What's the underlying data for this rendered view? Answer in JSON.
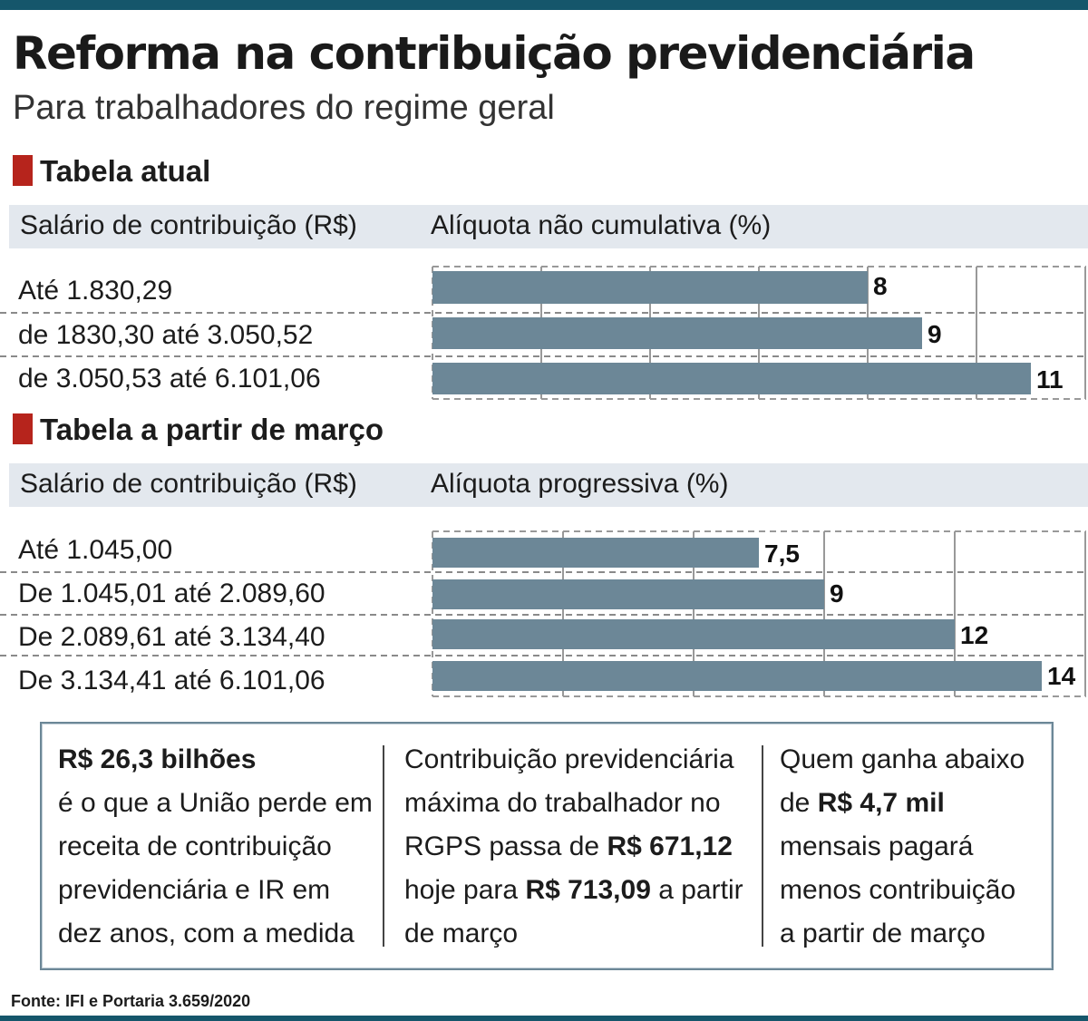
{
  "title": "Reforma na contribuição previdenciária",
  "subtitle": "Para trabalhadores do regime geral",
  "colors": {
    "bar": "#6c8797",
    "accent": "#b6241c",
    "rule": "#15566b",
    "header_bg": "#e3e8ee"
  },
  "chart_data": [
    {
      "type": "bar",
      "orientation": "horizontal",
      "section_title": "Tabela atual",
      "col_header_left": "Salário de contribuição (R$)",
      "col_header_right": "Alíquota não cumulativa (%)",
      "categories": [
        "Até 1.830,29",
        "de 1830,30 até 3.050,52",
        "de 3.050,53 até 6.101,06"
      ],
      "values": [
        8,
        9,
        11
      ],
      "labels": [
        "8",
        "9",
        "11"
      ],
      "xlim": [
        0,
        12
      ],
      "grid": true
    },
    {
      "type": "bar",
      "orientation": "horizontal",
      "section_title": "Tabela a partir de março",
      "col_header_left": "Salário de contribuição (R$)",
      "col_header_right": "Alíquota progressiva (%)",
      "categories": [
        "Até 1.045,00",
        "De 1.045,01 até 2.089,60",
        "De 2.089,61 até 3.134,40",
        "De 3.134,41 até 6.101,06"
      ],
      "values": [
        7.5,
        9,
        12,
        14
      ],
      "labels": [
        "7,5",
        "9",
        "12",
        "14"
      ],
      "xlim": [
        0,
        15
      ],
      "grid": true
    }
  ],
  "notes": {
    "left": {
      "bold": "R$ 26,3 bilhões",
      "text": "é o que a União perde em receita de contribuição previdenciária e IR em dez anos, com a medida"
    },
    "middle": {
      "t1": "Contribuição previdenciária máxima do trabalhador no RGPS passa de ",
      "b1": "R$ 671,12",
      "t2": " hoje para ",
      "b2": "R$ 713,09",
      "t3": " a partir de março"
    },
    "right": {
      "t1": "Quem ganha abaixo de ",
      "b1": "R$ 4,7 mil",
      "t2": " mensais pagará menos contribuição a partir de março"
    }
  },
  "source": "Fonte: IFI e Portaria 3.659/2020"
}
